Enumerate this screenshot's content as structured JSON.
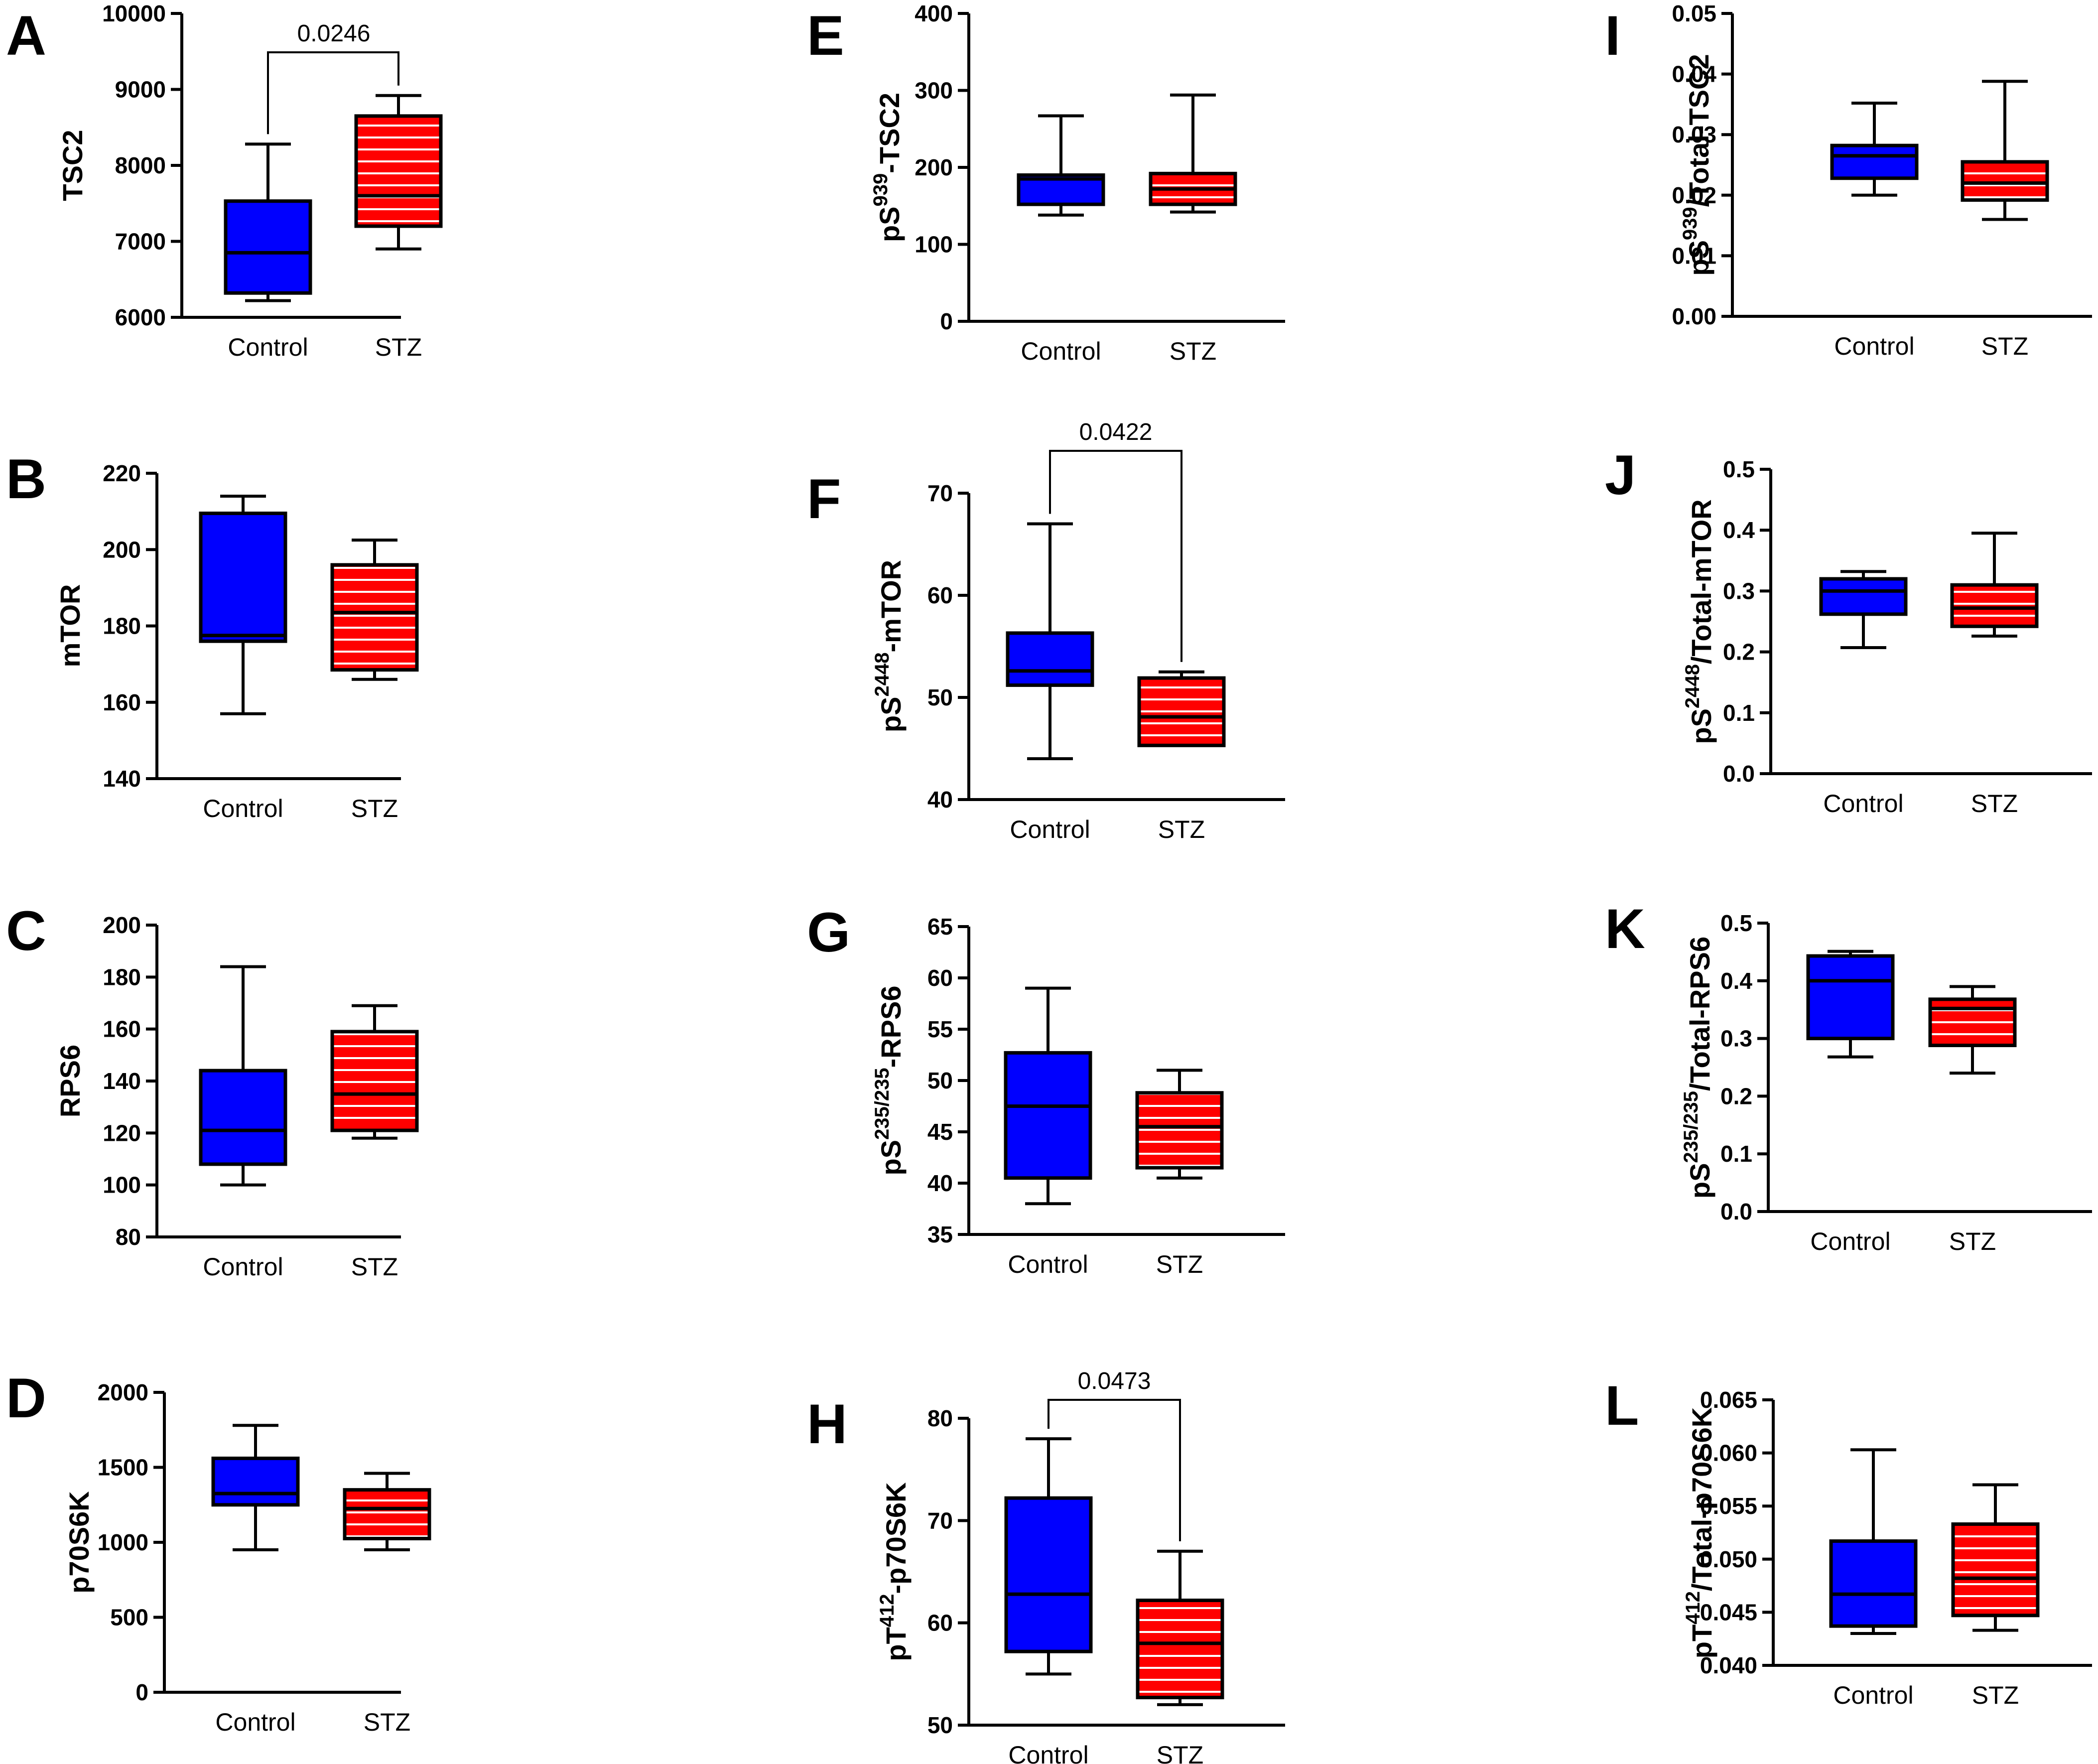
{
  "colors": {
    "control": "#0000ff",
    "stz": "#ff0000",
    "stroke": "#000000",
    "stripe": "#ffffff"
  },
  "chart_data": [
    {
      "letter": "A",
      "type": "box",
      "ylabel": "TSC2",
      "ylim": [
        6000,
        10000
      ],
      "yticks": [
        "6000",
        "7000",
        "8000",
        "9000",
        "10000"
      ],
      "categories": [
        "Control",
        "STZ"
      ],
      "series": [
        {
          "name": "Control",
          "min": 6220,
          "q1": 6320,
          "median": 6850,
          "q3": 7530,
          "max": 8280
        },
        {
          "name": "STZ",
          "min": 6900,
          "q1": 7200,
          "median": 7600,
          "q3": 8650,
          "max": 8920
        }
      ],
      "pvalue": "0.0246"
    },
    {
      "letter": "B",
      "type": "box",
      "ylabel": "mTOR",
      "ylim": [
        140,
        220
      ],
      "yticks": [
        "140",
        "160",
        "180",
        "200",
        "220"
      ],
      "categories": [
        "Control",
        "STZ"
      ],
      "series": [
        {
          "name": "Control",
          "min": 157,
          "q1": 176,
          "median": 177.5,
          "q3": 209.5,
          "max": 214
        },
        {
          "name": "STZ",
          "min": 166,
          "q1": 168.5,
          "median": 183.5,
          "q3": 196,
          "max": 202.5
        }
      ]
    },
    {
      "letter": "C",
      "type": "box",
      "ylabel": "RPS6",
      "ylim": [
        80,
        200
      ],
      "yticks": [
        "80",
        "100",
        "120",
        "140",
        "160",
        "180",
        "200"
      ],
      "categories": [
        "Control",
        "STZ"
      ],
      "series": [
        {
          "name": "Control",
          "min": 100,
          "q1": 108,
          "median": 121,
          "q3": 144,
          "max": 184
        },
        {
          "name": "STZ",
          "min": 118,
          "q1": 121,
          "median": 135,
          "q3": 159,
          "max": 169
        }
      ]
    },
    {
      "letter": "D",
      "type": "box",
      "ylabel": "p70S6K",
      "ylim": [
        0,
        2000
      ],
      "yticks": [
        "0",
        "500",
        "1000",
        "1500",
        "2000"
      ],
      "categories": [
        "Control",
        "STZ"
      ],
      "series": [
        {
          "name": "Control",
          "min": 950,
          "q1": 1250,
          "median": 1325,
          "q3": 1560,
          "max": 1780
        },
        {
          "name": "STZ",
          "min": 950,
          "q1": 1025,
          "median": 1225,
          "q3": 1350,
          "max": 1460
        }
      ]
    },
    {
      "letter": "E",
      "type": "box",
      "ylabel_main": "pS",
      "ylabel_sup": "939",
      "ylabel_rest": "-TSC2",
      "ylim": [
        0,
        400
      ],
      "yticks": [
        "0",
        "100",
        "200",
        "300",
        "400"
      ],
      "categories": [
        "Control",
        "STZ"
      ],
      "series": [
        {
          "name": "Control",
          "min": 138,
          "q1": 152,
          "median": 185,
          "q3": 190,
          "max": 267
        },
        {
          "name": "STZ",
          "min": 142,
          "q1": 152,
          "median": 172,
          "q3": 192,
          "max": 294
        }
      ]
    },
    {
      "letter": "F",
      "type": "box",
      "ylabel_main": "pS",
      "ylabel_sup": "2448",
      "ylabel_rest": "-mTOR",
      "ylim": [
        40,
        70
      ],
      "yticks": [
        "40",
        "50",
        "60",
        "70"
      ],
      "categories": [
        "Control",
        "STZ"
      ],
      "series": [
        {
          "name": "Control",
          "min": 44,
          "q1": 51.2,
          "median": 52.6,
          "q3": 56.3,
          "max": 67
        },
        {
          "name": "STZ",
          "min": 45.3,
          "q1": 45.3,
          "median": 48.1,
          "q3": 51.9,
          "max": 52.5
        }
      ],
      "pvalue": "0.0422"
    },
    {
      "letter": "G",
      "type": "box",
      "ylabel_main": "pS",
      "ylabel_sup": "235/235",
      "ylabel_rest": "-RPS6",
      "ylim": [
        35,
        65
      ],
      "yticks": [
        "35",
        "40",
        "45",
        "50",
        "55",
        "60",
        "65"
      ],
      "categories": [
        "Control",
        "STZ"
      ],
      "series": [
        {
          "name": "Control",
          "min": 38,
          "q1": 40.5,
          "median": 47.5,
          "q3": 52.7,
          "max": 59
        },
        {
          "name": "STZ",
          "min": 40.5,
          "q1": 41.5,
          "median": 45.5,
          "q3": 48.8,
          "max": 51
        }
      ]
    },
    {
      "letter": "H",
      "type": "box",
      "ylabel_main": "pT",
      "ylabel_sup": "412",
      "ylabel_rest": "-p70S6K",
      "ylim": [
        50,
        80
      ],
      "yticks": [
        "50",
        "60",
        "70",
        "80"
      ],
      "categories": [
        "Control",
        "STZ"
      ],
      "series": [
        {
          "name": "Control",
          "min": 55,
          "q1": 57.2,
          "median": 62.8,
          "q3": 72.2,
          "max": 78
        },
        {
          "name": "STZ",
          "min": 52,
          "q1": 52.7,
          "median": 58,
          "q3": 62.2,
          "max": 67
        }
      ],
      "pvalue": "0.0473"
    },
    {
      "letter": "I",
      "type": "box",
      "ylabel_main": "pS",
      "ylabel_sup": "939",
      "ylabel_rest": "/Total-TSC2",
      "ylim": [
        0,
        0.05
      ],
      "yticks": [
        "0.00",
        "0.01",
        "0.02",
        "0.03",
        "0.04",
        "0.05"
      ],
      "categories": [
        "Control",
        "STZ"
      ],
      "series": [
        {
          "name": "Control",
          "min": 0.02,
          "q1": 0.0228,
          "median": 0.0265,
          "q3": 0.0282,
          "max": 0.0352
        },
        {
          "name": "STZ",
          "min": 0.016,
          "q1": 0.0192,
          "median": 0.022,
          "q3": 0.0255,
          "max": 0.0388
        }
      ]
    },
    {
      "letter": "J",
      "type": "box",
      "ylabel_main": "pS",
      "ylabel_sup": "2448",
      "ylabel_rest": "/Total-mTOR",
      "ylim": [
        0,
        0.5
      ],
      "yticks": [
        "0.0",
        "0.1",
        "0.2",
        "0.3",
        "0.4",
        "0.5"
      ],
      "categories": [
        "Control",
        "STZ"
      ],
      "series": [
        {
          "name": "Control",
          "min": 0.207,
          "q1": 0.262,
          "median": 0.3,
          "q3": 0.32,
          "max": 0.332
        },
        {
          "name": "STZ",
          "min": 0.226,
          "q1": 0.242,
          "median": 0.272,
          "q3": 0.31,
          "max": 0.395
        }
      ]
    },
    {
      "letter": "K",
      "type": "box",
      "ylabel_main": "pS",
      "ylabel_sup": "235/235",
      "ylabel_rest": "/Total-RPS6",
      "ylim": [
        0,
        0.5
      ],
      "yticks": [
        "0.0",
        "0.1",
        "0.2",
        "0.3",
        "0.4",
        "0.5"
      ],
      "categories": [
        "Control",
        "STZ"
      ],
      "series": [
        {
          "name": "Control",
          "min": 0.268,
          "q1": 0.3,
          "median": 0.4,
          "q3": 0.443,
          "max": 0.451
        },
        {
          "name": "STZ",
          "min": 0.24,
          "q1": 0.288,
          "median": 0.352,
          "q3": 0.368,
          "max": 0.39
        }
      ]
    },
    {
      "letter": "L",
      "type": "box",
      "ylabel_main": "pT",
      "ylabel_sup": "412",
      "ylabel_rest": "/Total-p70S6K",
      "ylim": [
        0.04,
        0.065
      ],
      "yticks": [
        "0.040",
        "0.045",
        "0.050",
        "0.055",
        "0.060",
        "0.065"
      ],
      "categories": [
        "Control",
        "STZ"
      ],
      "series": [
        {
          "name": "Control",
          "min": 0.043,
          "q1": 0.0437,
          "median": 0.0467,
          "q3": 0.0517,
          "max": 0.0603
        },
        {
          "name": "STZ",
          "min": 0.0433,
          "q1": 0.0447,
          "median": 0.0482,
          "q3": 0.0533,
          "max": 0.057
        }
      ]
    }
  ]
}
